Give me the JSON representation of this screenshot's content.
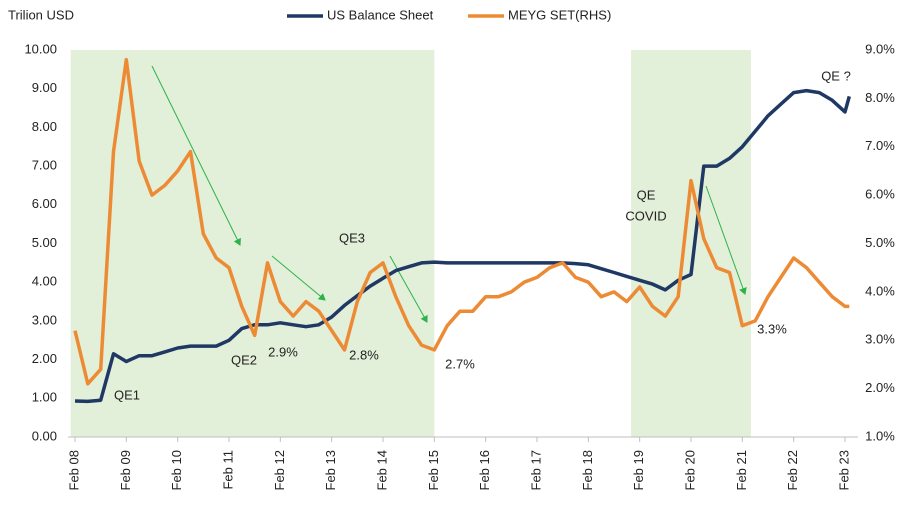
{
  "chart_data": {
    "type": "line",
    "y_axis_title": "Trilion USD",
    "x": [
      "2008-02",
      "2008-05",
      "2008-08",
      "2008-11",
      "2009-02",
      "2009-05",
      "2009-08",
      "2009-11",
      "2010-02",
      "2010-05",
      "2010-08",
      "2010-11",
      "2011-02",
      "2011-05",
      "2011-08",
      "2011-11",
      "2012-02",
      "2012-05",
      "2012-08",
      "2012-11",
      "2013-02",
      "2013-05",
      "2013-08",
      "2013-11",
      "2014-02",
      "2014-05",
      "2014-08",
      "2014-11",
      "2015-02",
      "2015-05",
      "2015-08",
      "2015-11",
      "2016-02",
      "2016-05",
      "2016-08",
      "2016-11",
      "2017-02",
      "2017-05",
      "2017-08",
      "2017-11",
      "2018-02",
      "2018-05",
      "2018-08",
      "2018-11",
      "2019-02",
      "2019-05",
      "2019-08",
      "2019-11",
      "2020-02",
      "2020-05",
      "2020-08",
      "2020-11",
      "2021-02",
      "2021-05",
      "2021-08",
      "2021-11",
      "2022-02",
      "2022-05",
      "2022-08",
      "2022-11",
      "2023-02",
      "2023-03"
    ],
    "series": [
      {
        "name": "US Balance Sheet",
        "color": "#1f3864",
        "axis": "y",
        "values": [
          0.93,
          0.92,
          0.95,
          2.15,
          1.95,
          2.1,
          2.1,
          2.2,
          2.3,
          2.35,
          2.35,
          2.35,
          2.5,
          2.8,
          2.9,
          2.9,
          2.95,
          2.9,
          2.85,
          2.9,
          3.1,
          3.4,
          3.65,
          3.9,
          4.1,
          4.3,
          4.4,
          4.5,
          4.52,
          4.5,
          4.5,
          4.5,
          4.5,
          4.5,
          4.5,
          4.5,
          4.5,
          4.5,
          4.5,
          4.48,
          4.45,
          4.35,
          4.25,
          4.15,
          4.05,
          3.95,
          3.8,
          4.05,
          4.2,
          7.0,
          7.0,
          7.2,
          7.5,
          7.9,
          8.3,
          8.6,
          8.9,
          8.95,
          8.9,
          8.7,
          8.4,
          8.8
        ]
      },
      {
        "name": "MEYG SET(RHS)",
        "color": "#ed8b35",
        "axis": "y2",
        "values": [
          3.2,
          2.1,
          2.4,
          6.9,
          8.8,
          6.7,
          6.0,
          6.2,
          6.5,
          6.9,
          5.2,
          4.7,
          4.5,
          3.7,
          3.1,
          4.6,
          3.8,
          3.5,
          3.8,
          3.6,
          3.2,
          2.8,
          3.8,
          4.4,
          4.6,
          3.9,
          3.3,
          2.9,
          2.8,
          3.3,
          3.6,
          3.6,
          3.9,
          3.9,
          4.0,
          4.2,
          4.3,
          4.5,
          4.6,
          4.3,
          4.2,
          3.9,
          4.0,
          3.8,
          4.1,
          3.7,
          3.5,
          3.9,
          6.3,
          5.1,
          4.5,
          4.4,
          3.3,
          3.4,
          3.9,
          4.3,
          4.7,
          4.5,
          4.2,
          3.9,
          3.7,
          3.7
        ]
      }
    ],
    "xticks": [
      {
        "value": "2008-02",
        "label": "Feb 08"
      },
      {
        "value": "2009-02",
        "label": "Feb 09"
      },
      {
        "value": "2010-02",
        "label": "Feb 10"
      },
      {
        "value": "2011-02",
        "label": "Feb 11"
      },
      {
        "value": "2012-02",
        "label": "Feb 12"
      },
      {
        "value": "2013-02",
        "label": "Feb 13"
      },
      {
        "value": "2014-02",
        "label": "Feb 14"
      },
      {
        "value": "2015-02",
        "label": "Feb 15"
      },
      {
        "value": "2016-02",
        "label": "Feb 16"
      },
      {
        "value": "2017-02",
        "label": "Feb 17"
      },
      {
        "value": "2018-02",
        "label": "Feb 18"
      },
      {
        "value": "2019-02",
        "label": "Feb 19"
      },
      {
        "value": "2020-02",
        "label": "Feb 20"
      },
      {
        "value": "2021-02",
        "label": "Feb 21"
      },
      {
        "value": "2022-02",
        "label": "Feb 22"
      },
      {
        "value": "2023-02",
        "label": "Feb 23"
      }
    ],
    "ylim": [
      0,
      10
    ],
    "yticks": [
      {
        "value": 0,
        "label": "0.00"
      },
      {
        "value": 1,
        "label": "1.00"
      },
      {
        "value": 2,
        "label": "2.00"
      },
      {
        "value": 3,
        "label": "3.00"
      },
      {
        "value": 4,
        "label": "4.00"
      },
      {
        "value": 5,
        "label": "5.00"
      },
      {
        "value": 6,
        "label": "6.00"
      },
      {
        "value": 7,
        "label": "7.00"
      },
      {
        "value": 8,
        "label": "8.00"
      },
      {
        "value": 9,
        "label": "9.00"
      },
      {
        "value": 10,
        "label": "10.00"
      }
    ],
    "y2lim": [
      1,
      9
    ],
    "y2ticks": [
      {
        "value": 1,
        "label": "1.0%"
      },
      {
        "value": 2,
        "label": "2.0%"
      },
      {
        "value": 3,
        "label": "3.0%"
      },
      {
        "value": 4,
        "label": "4.0%"
      },
      {
        "value": 5,
        "label": "5.0%"
      },
      {
        "value": 6,
        "label": "6.0%"
      },
      {
        "value": 7,
        "label": "7.0%"
      },
      {
        "value": 8,
        "label": "8.0%"
      },
      {
        "value": 9,
        "label": "9.0%"
      }
    ],
    "shaded_ranges": [
      [
        "2008-01",
        "2015-02"
      ],
      [
        "2018-12",
        "2021-04"
      ]
    ],
    "shade_color": "#e2efd9",
    "annotations": [
      "QE1",
      "QE2",
      "2.9%",
      "QE3",
      "2.8%",
      "2.7%",
      "QE",
      "COVID",
      "3.3%",
      "QE ?"
    ]
  }
}
